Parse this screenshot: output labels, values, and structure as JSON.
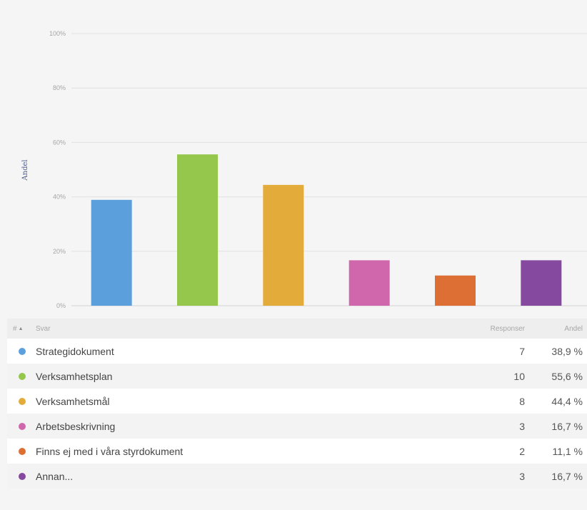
{
  "chart_data": {
    "type": "bar",
    "categories": [
      "Strategidokument",
      "Verksamhetsplan",
      "Verksamhetsmål",
      "Arbetsbeskrivning",
      "Finns ej med i våra styrdokument",
      "Annan..."
    ],
    "values": [
      38.9,
      55.6,
      44.4,
      16.7,
      11.1,
      16.7
    ],
    "colors": [
      "#5b9fdc",
      "#94c74b",
      "#e3ac3a",
      "#d067ac",
      "#dd6f34",
      "#8549a0"
    ],
    "title": "",
    "xlabel": "",
    "ylabel": "Andel",
    "ylim": [
      0,
      100
    ],
    "yticks": [
      0,
      20,
      40,
      60,
      80,
      100
    ],
    "ytick_labels": [
      "0%",
      "20%",
      "40%",
      "60%",
      "80%",
      "100%"
    ],
    "grid": true
  },
  "table": {
    "header": {
      "num": "#",
      "sort_icon": "sort-asc-icon",
      "answer": "Svar",
      "responses": "Responser",
      "share": "Andel"
    },
    "rows": [
      {
        "label": "Strategidokument",
        "responses": "7",
        "share": "38,9 %",
        "color": "#5b9fdc"
      },
      {
        "label": "Verksamhetsplan",
        "responses": "10",
        "share": "55,6 %",
        "color": "#94c74b"
      },
      {
        "label": "Verksamhetsmål",
        "responses": "8",
        "share": "44,4 %",
        "color": "#e3ac3a"
      },
      {
        "label": "Arbetsbeskrivning",
        "responses": "3",
        "share": "16,7 %",
        "color": "#d067ac"
      },
      {
        "label": "Finns ej med i våra styrdokument",
        "responses": "2",
        "share": "11,1 %",
        "color": "#dd6f34"
      },
      {
        "label": "Annan...",
        "responses": "3",
        "share": "16,7 %",
        "color": "#8549a0"
      }
    ]
  }
}
